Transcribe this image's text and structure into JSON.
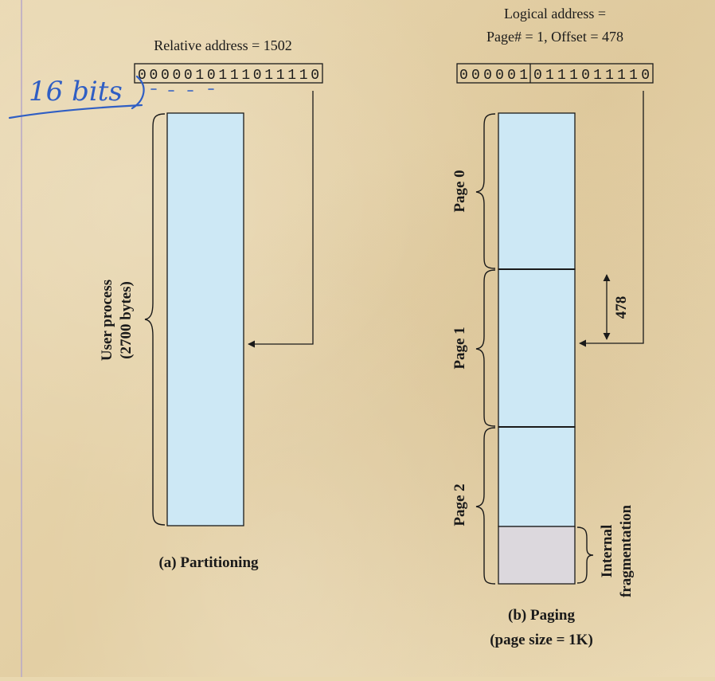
{
  "partitioning": {
    "relative_address_label": "Relative address = 1502",
    "binary": "0000010111011110",
    "process_label_line1": "User process",
    "process_label_line2": "(2700 bytes)",
    "caption": "(a) Partitioning",
    "handwritten_note": "16 bits"
  },
  "paging": {
    "logical_address_line1": "Logical address =",
    "logical_address_line2": "Page# = 1, Offset = 478",
    "binary_page": "000001",
    "binary_offset": "0111011110",
    "pages": [
      "Page 0",
      "Page 1",
      "Page 2"
    ],
    "offset_label": "478",
    "fragmentation_line1": "Internal",
    "fragmentation_line2": "fragmentation",
    "caption_line1": "(b) Paging",
    "caption_line2": "(page size = 1K)"
  },
  "colors": {
    "block_fill": "#cde8f5",
    "fragment_fill": "#dcd8dd",
    "ink": "#1a1a1a",
    "handwriting": "#2f5ec4",
    "margin_line": "#b7a8c8"
  }
}
